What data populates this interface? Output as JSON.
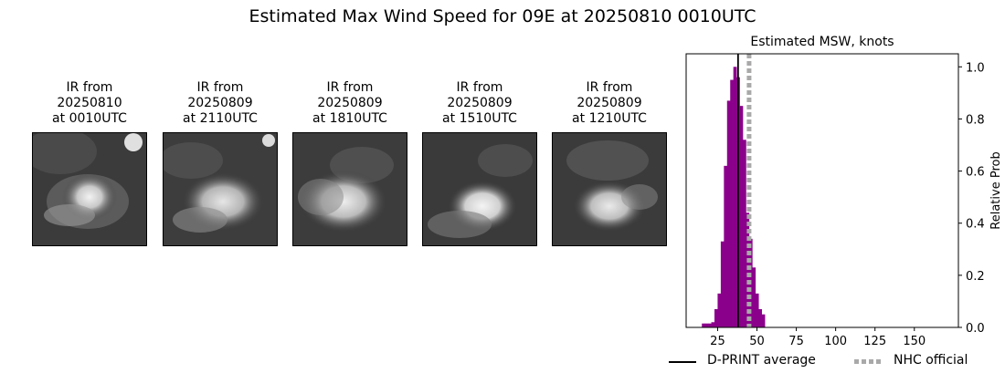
{
  "suptitle": "Estimated Max Wind Speed for 09E at 20250810 0010UTC",
  "ir_panels": [
    {
      "line1": "IR from",
      "line2": "20250810",
      "line3": "at 0010UTC"
    },
    {
      "line1": "IR from",
      "line2": "20250809",
      "line3": "at 2110UTC"
    },
    {
      "line1": "IR from",
      "line2": "20250809",
      "line3": "at 1810UTC"
    },
    {
      "line1": "IR from",
      "line2": "20250809",
      "line3": "at 1510UTC"
    },
    {
      "line1": "IR from",
      "line2": "20250809",
      "line3": "at 1210UTC"
    }
  ],
  "chart_data": {
    "type": "bar",
    "title": "Estimated MSW, knots",
    "xlabel": "",
    "ylabel": "Relative Prob",
    "xlim": [
      5,
      178
    ],
    "ylim": [
      0,
      1.05
    ],
    "xticks": [
      25,
      50,
      75,
      100,
      125,
      150
    ],
    "yticks": [
      0.0,
      0.2,
      0.4,
      0.6,
      0.8,
      1.0
    ],
    "yaxis_side": "right",
    "bin_width": 2,
    "bars": [
      {
        "x": 16,
        "value": 0.015
      },
      {
        "x": 18,
        "value": 0.015
      },
      {
        "x": 20,
        "value": 0.015
      },
      {
        "x": 22,
        "value": 0.02
      },
      {
        "x": 24,
        "value": 0.07
      },
      {
        "x": 26,
        "value": 0.13
      },
      {
        "x": 28,
        "value": 0.33
      },
      {
        "x": 30,
        "value": 0.62
      },
      {
        "x": 32,
        "value": 0.87
      },
      {
        "x": 34,
        "value": 0.95
      },
      {
        "x": 36,
        "value": 1.0
      },
      {
        "x": 38,
        "value": 0.96
      },
      {
        "x": 40,
        "value": 0.85
      },
      {
        "x": 42,
        "value": 0.72
      },
      {
        "x": 44,
        "value": 0.44
      },
      {
        "x": 46,
        "value": 0.34
      },
      {
        "x": 48,
        "value": 0.23
      },
      {
        "x": 50,
        "value": 0.13
      },
      {
        "x": 52,
        "value": 0.07
      },
      {
        "x": 54,
        "value": 0.05
      }
    ],
    "bar_color": "#8b008b",
    "dprint_average": 38,
    "nhc_official": 45,
    "dprint_color": "#000000",
    "nhc_color": "#a9a9a9",
    "legend": {
      "dprint_label": "D-PRINT average",
      "nhc_label": "NHC official",
      "placement": "below"
    }
  }
}
